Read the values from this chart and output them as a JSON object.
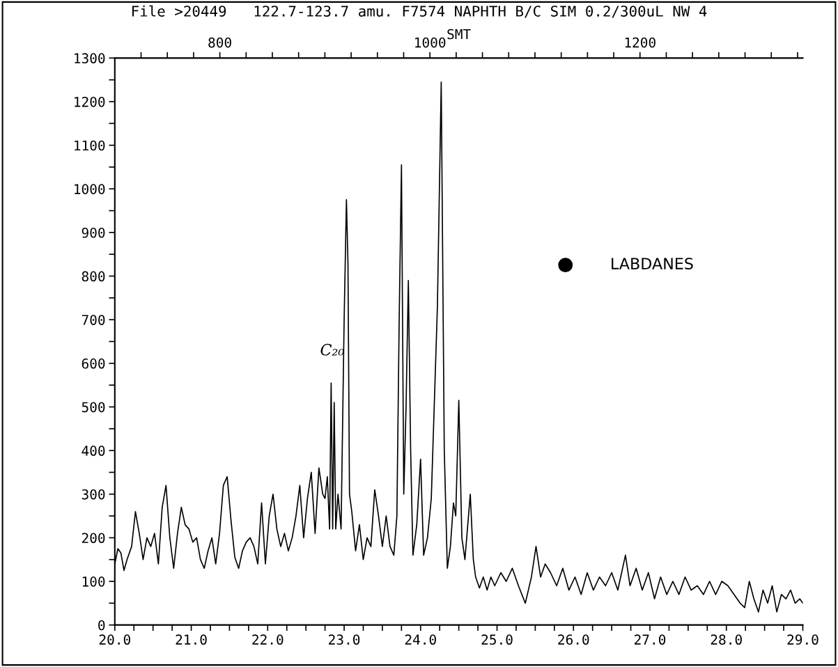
{
  "chart_data": {
    "type": "line",
    "title": "File >20449   122.7-123.7 amu. F7574 NAPHTH B/C SIM 0.2/300uL NW 4",
    "x2label": "SMT",
    "x": [
      20.0,
      20.04,
      20.08,
      20.12,
      20.16,
      20.22,
      20.27,
      20.32,
      20.37,
      20.42,
      20.47,
      20.52,
      20.57,
      20.62,
      20.67,
      20.72,
      20.77,
      20.82,
      20.87,
      20.92,
      20.97,
      21.02,
      21.07,
      21.12,
      21.17,
      21.22,
      21.27,
      21.32,
      21.37,
      21.42,
      21.47,
      21.52,
      21.57,
      21.62,
      21.67,
      21.72,
      21.77,
      21.82,
      21.87,
      21.92,
      21.97,
      22.02,
      22.07,
      22.12,
      22.17,
      22.22,
      22.27,
      22.32,
      22.37,
      22.42,
      22.47,
      22.52,
      22.57,
      22.62,
      22.67,
      22.72,
      22.75,
      22.78,
      22.81,
      22.83,
      22.85,
      22.87,
      22.89,
      22.92,
      22.96,
      23.0,
      23.03,
      23.05,
      23.07,
      23.1,
      23.15,
      23.2,
      23.25,
      23.3,
      23.35,
      23.4,
      23.45,
      23.5,
      23.55,
      23.6,
      23.65,
      23.69,
      23.72,
      23.75,
      23.78,
      23.81,
      23.84,
      23.87,
      23.9,
      23.95,
      24.0,
      24.04,
      24.09,
      24.14,
      24.22,
      24.27,
      24.31,
      24.35,
      24.39,
      24.43,
      24.46,
      24.5,
      24.54,
      24.58,
      24.65,
      24.69,
      24.72,
      24.77,
      24.82,
      24.87,
      24.92,
      24.97,
      25.05,
      25.12,
      25.2,
      25.28,
      25.37,
      25.45,
      25.51,
      25.57,
      25.63,
      25.7,
      25.78,
      25.86,
      25.94,
      26.02,
      26.1,
      26.18,
      26.26,
      26.34,
      26.42,
      26.5,
      26.58,
      26.68,
      26.74,
      26.82,
      26.9,
      26.98,
      27.06,
      27.14,
      27.22,
      27.3,
      27.38,
      27.46,
      27.54,
      27.62,
      27.7,
      27.78,
      27.86,
      27.94,
      28.02,
      28.1,
      28.18,
      28.24,
      28.3,
      28.36,
      28.42,
      28.48,
      28.54,
      28.6,
      28.66,
      28.72,
      28.78,
      28.84,
      28.9,
      28.96,
      29.0
    ],
    "series": [
      {
        "color": "#000000",
        "values": [
          140,
          175,
          165,
          125,
          150,
          180,
          260,
          210,
          150,
          200,
          180,
          210,
          140,
          270,
          320,
          200,
          130,
          210,
          270,
          230,
          220,
          190,
          200,
          150,
          130,
          170,
          200,
          140,
          210,
          320,
          340,
          240,
          155,
          130,
          170,
          190,
          200,
          180,
          140,
          280,
          140,
          250,
          300,
          220,
          180,
          210,
          170,
          200,
          250,
          320,
          200,
          290,
          350,
          210,
          360,
          300,
          290,
          340,
          220,
          555,
          220,
          510,
          220,
          300,
          220,
          700,
          975,
          830,
          300,
          260,
          170,
          230,
          150,
          200,
          180,
          310,
          250,
          180,
          250,
          180,
          160,
          250,
          700,
          1055,
          300,
          500,
          790,
          400,
          160,
          230,
          380,
          160,
          200,
          290,
          730,
          1245,
          400,
          130,
          180,
          280,
          250,
          515,
          200,
          150,
          300,
          150,
          110,
          85,
          110,
          80,
          110,
          90,
          120,
          100,
          130,
          90,
          50,
          110,
          180,
          110,
          140,
          120,
          90,
          130,
          80,
          110,
          70,
          120,
          80,
          110,
          90,
          120,
          80,
          160,
          90,
          130,
          80,
          120,
          60,
          110,
          70,
          100,
          70,
          110,
          80,
          90,
          70,
          100,
          70,
          100,
          90,
          70,
          50,
          40,
          100,
          60,
          30,
          80,
          50,
          90,
          30,
          70,
          60,
          80,
          50,
          60,
          50
        ]
      }
    ],
    "xlim": [
      20.0,
      29.0
    ],
    "xticks": [
      {
        "value": 20.0,
        "label": "20.0"
      },
      {
        "value": 20.25,
        "label": null
      },
      {
        "value": 20.5,
        "label": null
      },
      {
        "value": 20.75,
        "label": null
      },
      {
        "value": 21.0,
        "label": "21.0"
      },
      {
        "value": 21.25,
        "label": null
      },
      {
        "value": 21.5,
        "label": null
      },
      {
        "value": 21.75,
        "label": null
      },
      {
        "value": 22.0,
        "label": "22.0"
      },
      {
        "value": 22.25,
        "label": null
      },
      {
        "value": 22.5,
        "label": null
      },
      {
        "value": 22.75,
        "label": null
      },
      {
        "value": 23.0,
        "label": "23.0"
      },
      {
        "value": 23.25,
        "label": null
      },
      {
        "value": 23.5,
        "label": null
      },
      {
        "value": 23.75,
        "label": null
      },
      {
        "value": 24.0,
        "label": "24.0"
      },
      {
        "value": 24.25,
        "label": null
      },
      {
        "value": 24.5,
        "label": null
      },
      {
        "value": 24.75,
        "label": null
      },
      {
        "value": 25.0,
        "label": "25.0"
      },
      {
        "value": 25.25,
        "label": null
      },
      {
        "value": 25.5,
        "label": null
      },
      {
        "value": 25.75,
        "label": null
      },
      {
        "value": 26.0,
        "label": "26.0"
      },
      {
        "value": 26.25,
        "label": null
      },
      {
        "value": 26.5,
        "label": null
      },
      {
        "value": 26.75,
        "label": null
      },
      {
        "value": 27.0,
        "label": "27.0"
      },
      {
        "value": 27.25,
        "label": null
      },
      {
        "value": 27.5,
        "label": null
      },
      {
        "value": 27.75,
        "label": null
      },
      {
        "value": 28.0,
        "label": "28.0"
      },
      {
        "value": 28.25,
        "label": null
      },
      {
        "value": 28.5,
        "label": null
      },
      {
        "value": 28.75,
        "label": null
      },
      {
        "value": 29.0,
        "label": "29.0"
      }
    ],
    "x2lim": [
      700,
      1355
    ],
    "x2ticks": [
      {
        "value": 725,
        "label": null
      },
      {
        "value": 750,
        "label": null
      },
      {
        "value": 775,
        "label": null
      },
      800,
      {
        "value": 825,
        "label": null
      },
      {
        "value": 850,
        "label": null
      },
      {
        "value": 875,
        "label": null
      },
      {
        "value": 900,
        "label": null
      },
      {
        "value": 925,
        "label": null
      },
      {
        "value": 950,
        "label": null
      },
      {
        "value": 975,
        "label": null
      },
      1000,
      {
        "value": 1025,
        "label": null
      },
      {
        "value": 1050,
        "label": null
      },
      {
        "value": 1075,
        "label": null
      },
      {
        "value": 1100,
        "label": null
      },
      {
        "value": 1125,
        "label": null
      },
      {
        "value": 1150,
        "label": null
      },
      {
        "value": 1175,
        "label": null
      },
      1200,
      {
        "value": 1225,
        "label": null
      },
      {
        "value": 1250,
        "label": null
      },
      {
        "value": 1275,
        "label": null
      },
      {
        "value": 1300,
        "label": null
      },
      {
        "value": 1325,
        "label": null
      },
      {
        "value": 1350,
        "label": null
      }
    ],
    "ylim": [
      0,
      1300
    ],
    "yticks": [
      0,
      {
        "value": 50,
        "label": null
      },
      100,
      {
        "value": 150,
        "label": null
      },
      200,
      {
        "value": 250,
        "label": null
      },
      300,
      {
        "value": 350,
        "label": null
      },
      400,
      {
        "value": 450,
        "label": null
      },
      500,
      {
        "value": 550,
        "label": null
      },
      600,
      {
        "value": 650,
        "label": null
      },
      700,
      {
        "value": 750,
        "label": null
      },
      800,
      {
        "value": 850,
        "label": null
      },
      900,
      {
        "value": 950,
        "label": null
      },
      1000,
      {
        "value": 1050,
        "label": null
      },
      1100,
      {
        "value": 1150,
        "label": null
      },
      1200,
      {
        "value": 1250,
        "label": null
      },
      1300
    ],
    "annotations": [
      "C₂₀",
      "LABDANES"
    ],
    "grid": false,
    "legend": false,
    "marker": "none",
    "line_style": "solid"
  }
}
